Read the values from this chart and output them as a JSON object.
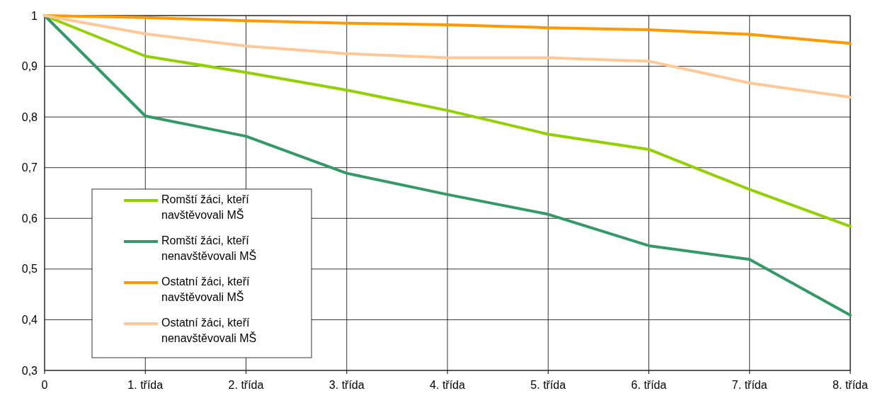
{
  "chart_data": {
    "type": "line",
    "categories": [
      "0",
      "1. třída",
      "2. třída",
      "3. třída",
      "4. třída",
      "5. třída",
      "6. třída",
      "7. třída",
      "8. třída"
    ],
    "series": [
      {
        "name": "Romští žáci, kteří navštěvovali MŠ",
        "color": "#92d000",
        "values": [
          1,
          0.92,
          0.888,
          0.853,
          0.813,
          0.766,
          0.736,
          0.657,
          0.584
        ]
      },
      {
        "name": "Romští žáci, kteří nenavštěvovali MŠ",
        "color": "#339966",
        "values": [
          1,
          0.802,
          0.762,
          0.689,
          0.647,
          0.608,
          0.546,
          0.519,
          0.409
        ]
      },
      {
        "name": "Ostatní žáci, kteří navštěvovali MŠ",
        "color": "#ff9900",
        "values": [
          1,
          0.996,
          0.99,
          0.985,
          0.982,
          0.976,
          0.972,
          0.963,
          0.945
        ]
      },
      {
        "name": "Ostatní žáci, kteří nenavštěvovali MŠ",
        "color": "#ffc896",
        "values": [
          1,
          0.964,
          0.94,
          0.925,
          0.917,
          0.917,
          0.91,
          0.867,
          0.839
        ]
      }
    ],
    "ylim": [
      0.3,
      1
    ],
    "yticks": [
      {
        "value": 0.3,
        "label": "0,3"
      },
      {
        "value": 0.4,
        "label": "0,4"
      },
      {
        "value": 0.5,
        "label": "0,5"
      },
      {
        "value": 0.6,
        "label": "0,6"
      },
      {
        "value": 0.7,
        "label": "0,7"
      },
      {
        "value": 0.8,
        "label": "0,8"
      },
      {
        "value": 0.9,
        "label": "0,9"
      },
      1
    ],
    "grid": true,
    "legend": "bottom left",
    "marker": "none",
    "line_style": "solid"
  }
}
